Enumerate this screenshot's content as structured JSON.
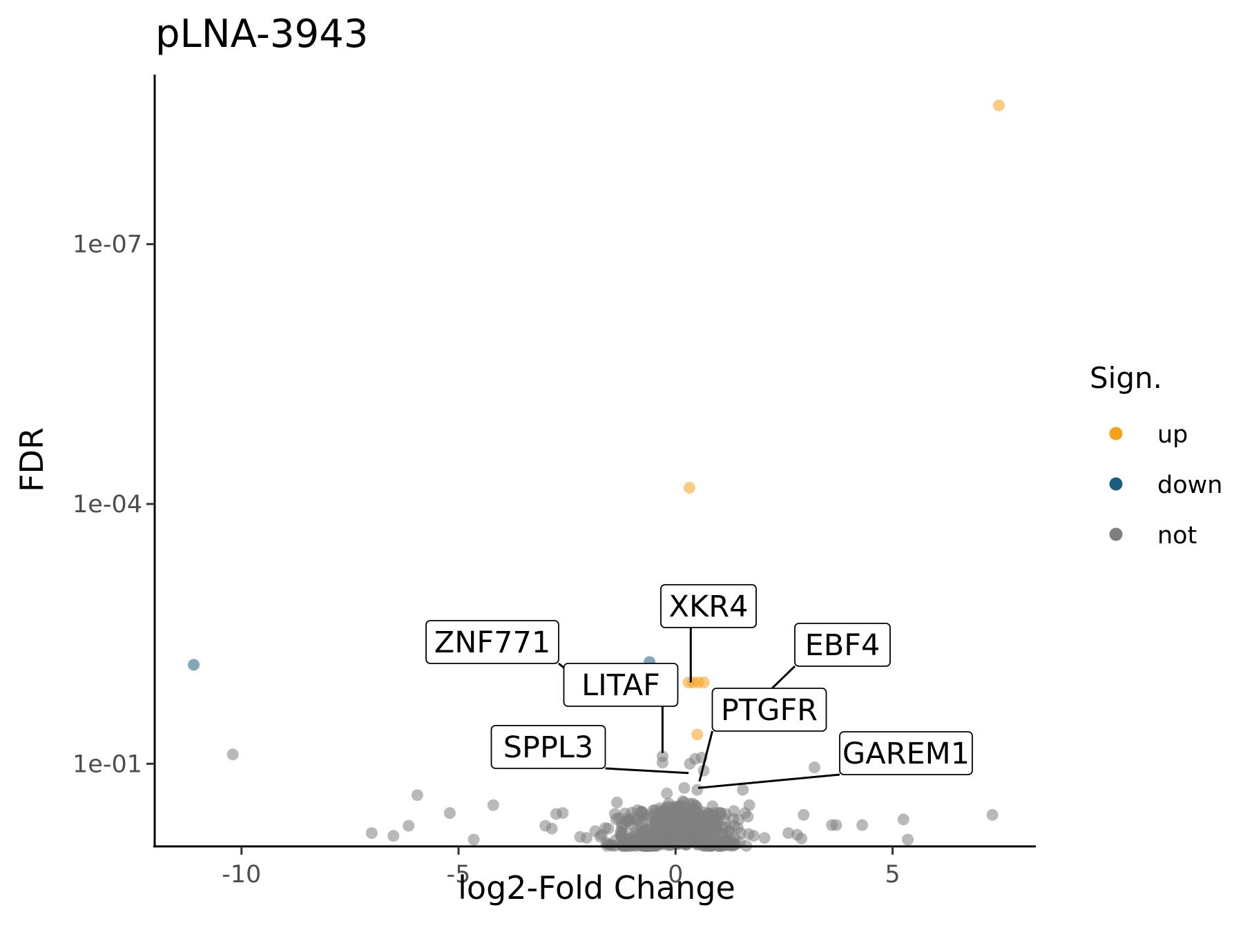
{
  "chart_data": {
    "type": "scatter",
    "title": "pLNA-3943",
    "xlabel": "log2-Fold Change",
    "ylabel": "FDR",
    "xlim": [
      -12,
      8.3
    ],
    "y_scale": "log10-reversed",
    "ylim": [
      0.9,
      1.1e-09
    ],
    "x_ticks": [
      {
        "value": -10,
        "label": "-10"
      },
      {
        "value": -5,
        "label": "-5"
      },
      {
        "value": 0,
        "label": "0"
      },
      {
        "value": 5,
        "label": "5"
      }
    ],
    "y_ticks": [
      {
        "value": 1e-07,
        "label": "1e-07"
      },
      {
        "value": 0.0001,
        "label": "1e-04"
      },
      {
        "value": 0.1,
        "label": "1e-01"
      }
    ],
    "grid": false,
    "legend": {
      "title": "Sign.",
      "position": "right",
      "entries": [
        {
          "key": "up",
          "label": "up",
          "color": "#F7A11A"
        },
        {
          "key": "down",
          "label": "down",
          "color": "#1B5E7F"
        },
        {
          "key": "not",
          "label": "not",
          "color": "#7F7F7F"
        }
      ]
    },
    "colors": {
      "up": "#F7A11A",
      "down": "#1B5E7F",
      "not": "#7F7F7F"
    },
    "series": [
      {
        "name": "up",
        "points": [
          {
            "x": 7.45,
            "y": 2.5e-09
          },
          {
            "x": 0.32,
            "y": 6.5e-05
          },
          {
            "x": 0.3,
            "y": 0.0115
          },
          {
            "x": 0.4,
            "y": 0.0115
          },
          {
            "x": 0.52,
            "y": 0.0115
          },
          {
            "x": 0.65,
            "y": 0.0115
          },
          {
            "x": 1.43,
            "y": 0.024
          },
          {
            "x": 0.5,
            "y": 0.046
          }
        ]
      },
      {
        "name": "down",
        "points": [
          {
            "x": -11.1,
            "y": 0.0072
          },
          {
            "x": -0.6,
            "y": 0.0067
          }
        ]
      },
      {
        "name": "not",
        "points": [
          {
            "x": -10.2,
            "y": 0.078
          },
          {
            "x": -3.2,
            "y": 0.061
          },
          {
            "x": -5.95,
            "y": 0.23
          },
          {
            "x": -5.2,
            "y": 0.37
          },
          {
            "x": -4.2,
            "y": 0.3
          },
          {
            "x": -7.0,
            "y": 0.63
          },
          {
            "x": -6.5,
            "y": 0.68
          },
          {
            "x": -6.15,
            "y": 0.52
          },
          {
            "x": -4.65,
            "y": 0.75
          },
          {
            "x": -3.0,
            "y": 0.52
          },
          {
            "x": -2.85,
            "y": 0.56
          },
          {
            "x": -2.75,
            "y": 0.38
          },
          {
            "x": -2.6,
            "y": 0.37
          },
          {
            "x": -2.2,
            "y": 0.7
          },
          {
            "x": -2.05,
            "y": 0.72
          },
          {
            "x": -1.85,
            "y": 0.6
          },
          {
            "x": -1.7,
            "y": 0.66
          },
          {
            "x": -1.55,
            "y": 0.56
          },
          {
            "x": -1.4,
            "y": 0.38
          },
          {
            "x": -1.35,
            "y": 0.28
          },
          {
            "x": -1.25,
            "y": 0.7
          },
          {
            "x": -1.1,
            "y": 0.46
          },
          {
            "x": -0.95,
            "y": 0.62
          },
          {
            "x": -0.85,
            "y": 0.71
          },
          {
            "x": -0.75,
            "y": 0.4
          },
          {
            "x": -0.65,
            "y": 0.58
          },
          {
            "x": -0.55,
            "y": 0.68
          },
          {
            "x": -0.45,
            "y": 0.5
          },
          {
            "x": -0.4,
            "y": 0.74
          },
          {
            "x": -0.3,
            "y": 0.082
          },
          {
            "x": -0.3,
            "y": 0.097
          },
          {
            "x": -0.2,
            "y": 0.22
          },
          {
            "x": -0.15,
            "y": 0.46
          },
          {
            "x": -0.05,
            "y": 0.69
          },
          {
            "x": 0.05,
            "y": 0.57
          },
          {
            "x": 0.12,
            "y": 0.65
          },
          {
            "x": 0.2,
            "y": 0.19
          },
          {
            "x": 0.25,
            "y": 0.42
          },
          {
            "x": 0.3,
            "y": 0.73
          },
          {
            "x": 0.33,
            "y": 0.1
          },
          {
            "x": 0.38,
            "y": 0.33
          },
          {
            "x": 0.42,
            "y": 0.5
          },
          {
            "x": 0.45,
            "y": 0.088
          },
          {
            "x": 0.5,
            "y": 0.2
          },
          {
            "x": 0.55,
            "y": 0.6
          },
          {
            "x": 0.6,
            "y": 0.085
          },
          {
            "x": 0.65,
            "y": 0.12
          },
          {
            "x": 0.7,
            "y": 0.68
          },
          {
            "x": 0.78,
            "y": 0.45
          },
          {
            "x": 0.85,
            "y": 0.31
          },
          {
            "x": 0.95,
            "y": 0.55
          },
          {
            "x": 1.05,
            "y": 0.66
          },
          {
            "x": 1.15,
            "y": 0.38
          },
          {
            "x": 1.25,
            "y": 0.71
          },
          {
            "x": 1.35,
            "y": 0.52
          },
          {
            "x": 1.5,
            "y": 0.63
          },
          {
            "x": 1.55,
            "y": 0.2
          },
          {
            "x": 1.6,
            "y": 0.37
          },
          {
            "x": 1.7,
            "y": 0.3
          },
          {
            "x": 1.8,
            "y": 0.68
          },
          {
            "x": 2.05,
            "y": 0.72
          },
          {
            "x": 2.6,
            "y": 0.63
          },
          {
            "x": 2.8,
            "y": 0.66
          },
          {
            "x": 2.9,
            "y": 0.73
          },
          {
            "x": 2.95,
            "y": 0.39
          },
          {
            "x": 3.2,
            "y": 0.11
          },
          {
            "x": 3.6,
            "y": 0.51
          },
          {
            "x": 3.7,
            "y": 0.51
          },
          {
            "x": 4.3,
            "y": 0.51
          },
          {
            "x": 5.25,
            "y": 0.44
          },
          {
            "x": 5.35,
            "y": 0.75
          },
          {
            "x": 7.3,
            "y": 0.39
          }
        ]
      }
    ],
    "labels": [
      {
        "text": "XKR4",
        "x": 0.35,
        "y": 0.0115
      },
      {
        "text": "ZNF771",
        "x": -1.7,
        "y": 0.018
      },
      {
        "text": "EBF4",
        "x": 1.6,
        "y": 0.027
      },
      {
        "text": "LITAF",
        "x": -0.3,
        "y": 0.075
      },
      {
        "text": "PTGFR",
        "x": 0.55,
        "y": 0.16
      },
      {
        "text": "SPPL3",
        "x": 0.3,
        "y": 0.128
      },
      {
        "text": "GAREM1",
        "x": 0.52,
        "y": 0.19
      }
    ]
  }
}
